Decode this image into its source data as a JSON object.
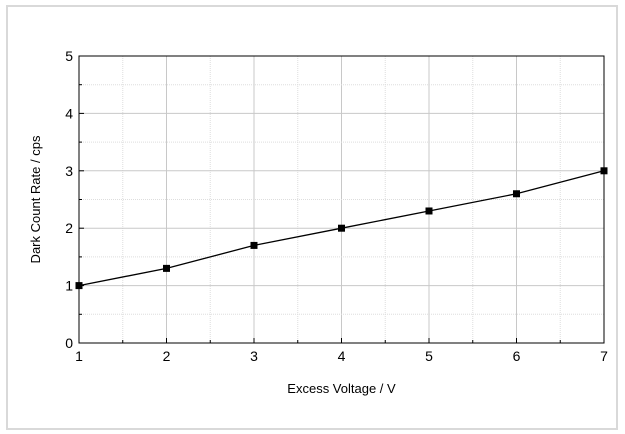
{
  "chart_data": {
    "type": "line",
    "xlabel": "Excess Voltage / V",
    "ylabel": "Dark Count Rate / cps",
    "xlim": [
      1,
      7
    ],
    "ylim": [
      0,
      5
    ],
    "x_ticks": [
      1,
      2,
      3,
      4,
      5,
      6,
      7
    ],
    "y_ticks": [
      0,
      1,
      2,
      3,
      4,
      5
    ],
    "x_minor_step": 0.5,
    "y_minor_step": 0.5,
    "grid": true,
    "legend": "none",
    "line_color": "#000000",
    "marker": "square",
    "series": [
      {
        "x": [
          1,
          2,
          3,
          4,
          5,
          6,
          7
        ],
        "values": [
          1.0,
          1.3,
          1.7,
          2.0,
          2.3,
          2.6,
          3.0
        ]
      }
    ]
  }
}
